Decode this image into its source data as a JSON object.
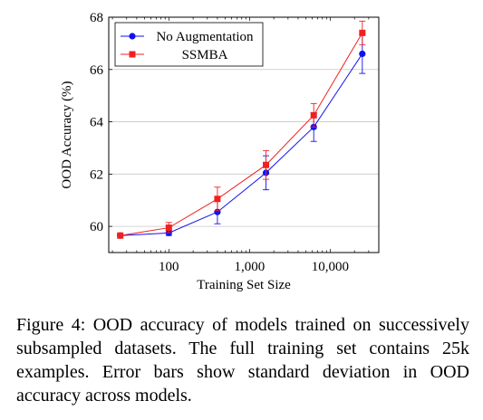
{
  "chart_data": {
    "type": "line",
    "xscale": "log",
    "xlabel": "Training Set Size",
    "ylabel": "OOD Accuracy (%)",
    "xlim": [
      18,
      40000
    ],
    "ylim": [
      59.0,
      68.0
    ],
    "xticks": [
      {
        "value": 100,
        "label": "100"
      },
      {
        "value": 1000,
        "label": "1,000"
      },
      {
        "value": 10000,
        "label": "10,000"
      }
    ],
    "yticks": [
      {
        "value": 60,
        "label": "60"
      },
      {
        "value": 62,
        "label": "62"
      },
      {
        "value": 64,
        "label": "64"
      },
      {
        "value": 66,
        "label": "66"
      },
      {
        "value": 68,
        "label": "68"
      }
    ],
    "grid": "horizontal",
    "legend": "top-left",
    "series": [
      {
        "name": "No Augmentation",
        "color": "#1010f0",
        "marker": "circle",
        "x": [
          25,
          100,
          400,
          1600,
          6250,
          25000
        ],
        "y": [
          59.65,
          59.75,
          60.55,
          62.05,
          63.8,
          66.6
        ],
        "err": [
          0.0,
          0.1,
          0.45,
          0.65,
          0.55,
          0.75
        ]
      },
      {
        "name": "SSMBA",
        "color": "#f02020",
        "marker": "square",
        "x": [
          25,
          100,
          400,
          1600,
          6250,
          25000
        ],
        "y": [
          59.65,
          59.95,
          61.05,
          62.35,
          64.25,
          67.4
        ],
        "err": [
          0.0,
          0.2,
          0.45,
          0.55,
          0.45,
          0.45
        ]
      }
    ]
  },
  "caption": "Figure 4: OOD accuracy of models trained on successively subsampled datasets. The full training set contains 25k examples. Error bars show standard deviation in OOD accuracy across models."
}
